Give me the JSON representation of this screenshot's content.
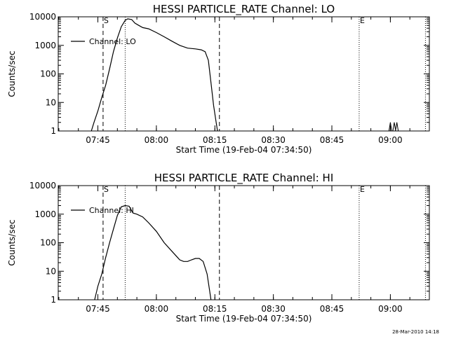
{
  "footer": {
    "timestamp": "28-Mar-2010 14:18"
  },
  "chart_data": [
    {
      "type": "line",
      "title": "HESSI PARTICLE_RATE Channel: LO",
      "xlabel": "Start Time (19-Feb-04 07:34:50)",
      "ylabel": "Counts/sec",
      "yscale": "log",
      "ylim": [
        1,
        10000
      ],
      "xlim": [
        "07:34:50",
        "09:10:00"
      ],
      "xticks": [
        "07:45",
        "08:00",
        "08:15",
        "08:30",
        "08:45",
        "09:00"
      ],
      "yticks": [
        "1",
        "10",
        "100",
        "1000",
        "10000"
      ],
      "legend": {
        "placement": "top-left",
        "label": "Channel: LO"
      },
      "markers": [
        {
          "label": "S",
          "time": "07:46:20",
          "style": "dashed"
        },
        {
          "label": "",
          "time": "07:52:00",
          "style": "dotted"
        },
        {
          "label": "",
          "time": "08:16:10",
          "style": "dashed"
        },
        {
          "label": "E",
          "time": "08:52:00",
          "style": "dotted"
        },
        {
          "label": "",
          "time": "09:09:00",
          "style": "dotted"
        }
      ],
      "series": [
        {
          "name": "Channel: LO",
          "points": [
            [
              "07:43:20",
              1
            ],
            [
              "07:44:00",
              2
            ],
            [
              "07:45:00",
              5
            ],
            [
              "07:46:00",
              15
            ],
            [
              "07:47:00",
              40
            ],
            [
              "07:48:00",
              150
            ],
            [
              "07:49:00",
              600
            ],
            [
              "07:50:00",
              1800
            ],
            [
              "07:51:00",
              4500
            ],
            [
              "07:52:00",
              7500
            ],
            [
              "07:52:40",
              8500
            ],
            [
              "07:53:40",
              8000
            ],
            [
              "07:54:30",
              6000
            ],
            [
              "07:55:30",
              5000
            ],
            [
              "07:56:30",
              4200
            ],
            [
              "07:58:00",
              3800
            ],
            [
              "08:00:00",
              2800
            ],
            [
              "08:02:00",
              2000
            ],
            [
              "08:04:00",
              1400
            ],
            [
              "08:06:00",
              1000
            ],
            [
              "08:08:00",
              800
            ],
            [
              "08:10:00",
              750
            ],
            [
              "08:11:30",
              700
            ],
            [
              "08:12:30",
              600
            ],
            [
              "08:13:20",
              300
            ],
            [
              "08:14:00",
              50
            ],
            [
              "08:14:40",
              8
            ],
            [
              "08:15:20",
              2
            ],
            [
              "08:15:40",
              1
            ]
          ],
          "bursts": [
            [
              "09:00:00",
              2
            ],
            [
              "09:01:00",
              2
            ],
            [
              "09:01:40",
              2
            ]
          ]
        }
      ]
    },
    {
      "type": "line",
      "title": "HESSI PARTICLE_RATE Channel: HI",
      "xlabel": "Start Time (19-Feb-04 07:34:50)",
      "ylabel": "Counts/sec",
      "yscale": "log",
      "ylim": [
        1,
        10000
      ],
      "xlim": [
        "07:34:50",
        "09:10:00"
      ],
      "xticks": [
        "07:45",
        "08:00",
        "08:15",
        "08:30",
        "08:45",
        "09:00"
      ],
      "yticks": [
        "1",
        "10",
        "100",
        "1000",
        "10000"
      ],
      "legend": {
        "placement": "top-left",
        "label": "Channel: HI"
      },
      "markers": [
        {
          "label": "S",
          "time": "07:46:20",
          "style": "dashed"
        },
        {
          "label": "",
          "time": "07:52:00",
          "style": "dotted"
        },
        {
          "label": "",
          "time": "08:16:10",
          "style": "dashed"
        },
        {
          "label": "E",
          "time": "08:52:00",
          "style": "dotted"
        },
        {
          "label": "",
          "time": "09:09:00",
          "style": "dotted"
        }
      ],
      "series": [
        {
          "name": "Channel: HI",
          "points": [
            [
              "07:44:10",
              1
            ],
            [
              "07:45:00",
              3
            ],
            [
              "07:46:00",
              8
            ],
            [
              "07:47:00",
              30
            ],
            [
              "07:48:00",
              100
            ],
            [
              "07:49:00",
              300
            ],
            [
              "07:50:00",
              900
            ],
            [
              "07:51:00",
              1800
            ],
            [
              "07:52:00",
              2000
            ],
            [
              "07:53:00",
              1900
            ],
            [
              "07:54:00",
              1100
            ],
            [
              "07:55:00",
              1000
            ],
            [
              "07:56:30",
              800
            ],
            [
              "07:58:00",
              500
            ],
            [
              "08:00:00",
              250
            ],
            [
              "08:02:00",
              100
            ],
            [
              "08:04:00",
              50
            ],
            [
              "08:06:00",
              25
            ],
            [
              "08:07:00",
              22
            ],
            [
              "08:08:00",
              22
            ],
            [
              "08:09:00",
              25
            ],
            [
              "08:10:00",
              28
            ],
            [
              "08:11:00",
              28
            ],
            [
              "08:12:00",
              22
            ],
            [
              "08:13:00",
              8
            ],
            [
              "08:13:40",
              2
            ],
            [
              "08:14:00",
              1
            ]
          ],
          "bursts": []
        }
      ]
    }
  ]
}
